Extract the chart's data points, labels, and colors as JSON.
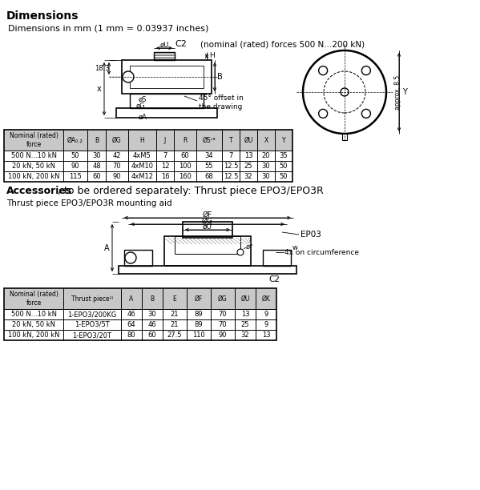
{
  "title": "Dimensions",
  "subtitle": "Dimensions in mm (1 mm = 0.03937 inches)",
  "c2_label": "C2",
  "c2_note": "    (nominal (rated) forces 500 N...200 kN)",
  "table1_headers": [
    "Nominal (rated)\nforce",
    "ØA₀.₂",
    "B",
    "ØG",
    "H",
    "J",
    "R",
    "ØSⁿ⁸",
    "T",
    "ØU",
    "X",
    "Y"
  ],
  "table1_rows": [
    [
      "500 N...10 kN",
      "50",
      "30",
      "42",
      "4xM5",
      "7",
      "60",
      "34",
      "7",
      "13",
      "20",
      "35"
    ],
    [
      "20 kN, 50 kN",
      "90",
      "48",
      "70",
      "4xM10",
      "12",
      "100",
      "55",
      "12.5",
      "25",
      "30",
      "50"
    ],
    [
      "100 kN, 200 kN",
      "115",
      "60",
      "90",
      "4xM12",
      "16",
      "160",
      "68",
      "12.5",
      "32",
      "30",
      "50"
    ]
  ],
  "accessories_bold": "Accessories",
  "accessories_rest": ", to be ordered separately: Thrust piece EPO3/EPO3R",
  "accessories_sub": "Thrust piece EPO3/EPO3R mounting aid",
  "table2_headers": [
    "Nominal (rated)\nforce",
    "Thrust piece¹⁾",
    "A",
    "B",
    "E",
    "ØF",
    "ØG",
    "ØU",
    "ØK"
  ],
  "table2_rows": [
    [
      "500 N...10 kN",
      "1-EPO3/200KG",
      "46",
      "30",
      "21",
      "89",
      "70",
      "13",
      "9"
    ],
    [
      "20 kN, 50 kN",
      "1-EPO3/5T",
      "64",
      "46",
      "21",
      "89",
      "70",
      "25",
      "9"
    ],
    [
      "100 kN, 200 kN",
      "1-EPO3/20T",
      "80",
      "60",
      "27.5",
      "110",
      "90",
      "32",
      "13"
    ]
  ],
  "bg_color": "#ffffff",
  "table_header_bg": "#c8c8c8",
  "label_18_3": "18.3",
  "label_45": "45° offset in\nthe drawing",
  "label_approx_8_5": "approx. 8.5",
  "ep03_label": "EP03",
  "c2_bottom_label": "C2",
  "circumference_label": "4x on circumference"
}
